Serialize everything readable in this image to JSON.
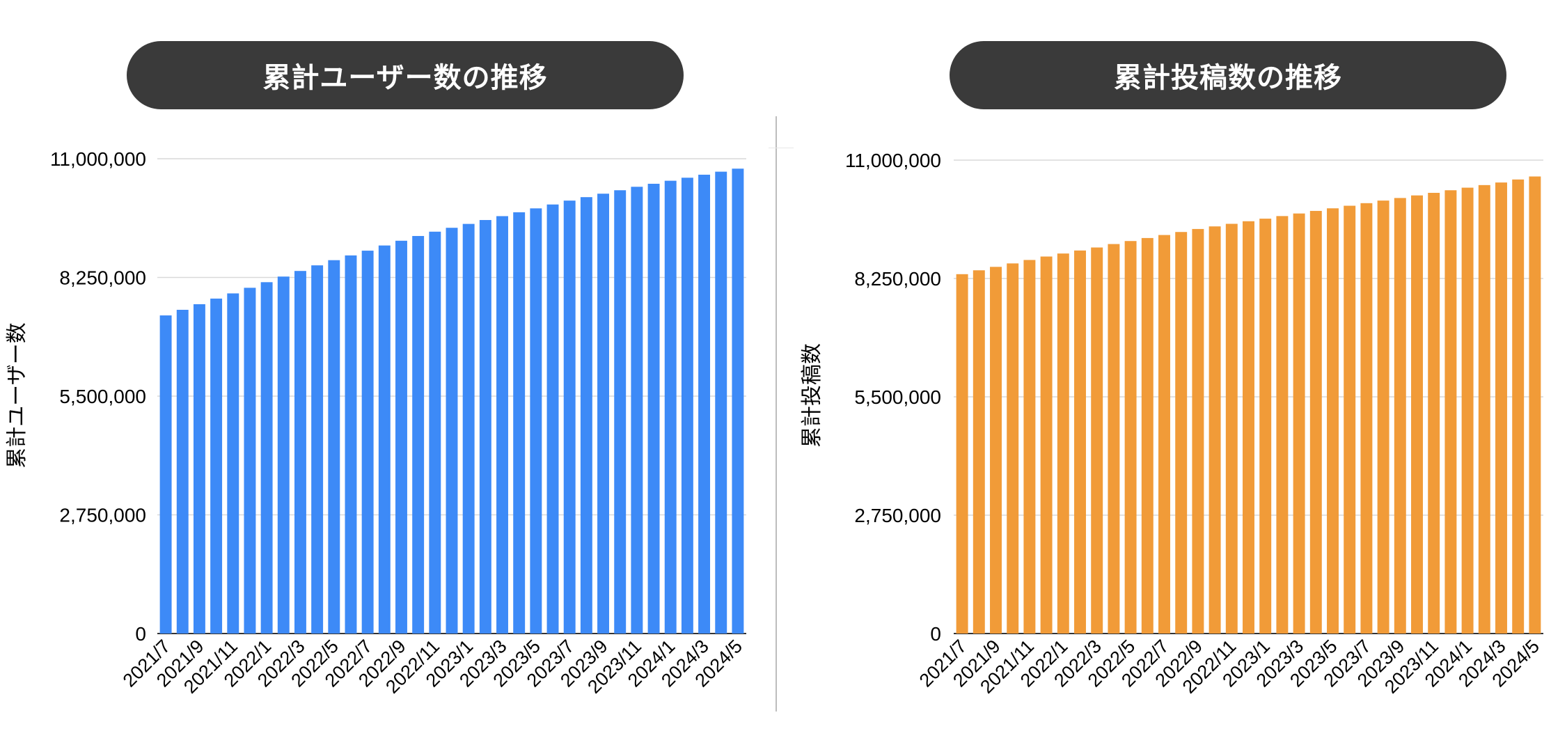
{
  "chart_data": [
    {
      "type": "bar",
      "title": "累計ユーザー数の推移",
      "xlabel": "",
      "ylabel": "累計ユーザー数",
      "ylim": [
        0,
        11000000
      ],
      "yticks": [
        0,
        2750000,
        5500000,
        8250000,
        11000000
      ],
      "ytick_labels": [
        "0",
        "2,750,000",
        "5,500,000",
        "8,250,000",
        "11,000,000"
      ],
      "grid": true,
      "color": "#3d8af7",
      "categories": [
        "2021/7",
        "2021/8",
        "2021/9",
        "2021/10",
        "2021/11",
        "2021/12",
        "2022/1",
        "2022/2",
        "2022/3",
        "2022/4",
        "2022/5",
        "2022/6",
        "2022/7",
        "2022/8",
        "2022/9",
        "2022/10",
        "2022/11",
        "2022/12",
        "2023/1",
        "2023/2",
        "2023/3",
        "2023/4",
        "2023/5",
        "2023/6",
        "2023/7",
        "2023/8",
        "2023/9",
        "2023/10",
        "2023/11",
        "2023/12",
        "2024/1",
        "2024/2",
        "2024/3",
        "2024/4",
        "2024/5"
      ],
      "xtick_labels": [
        "2021/7",
        "2021/9",
        "2021/11",
        "2022/1",
        "2022/3",
        "2022/5",
        "2022/7",
        "2022/9",
        "2022/11",
        "2023/1",
        "2023/3",
        "2023/5",
        "2023/7",
        "2023/9",
        "2023/11",
        "2024/1",
        "2024/3",
        "2024/5"
      ],
      "values": [
        7370000,
        7500000,
        7630000,
        7760000,
        7880000,
        8010000,
        8140000,
        8270000,
        8400000,
        8530000,
        8650000,
        8760000,
        8870000,
        8990000,
        9100000,
        9210000,
        9310000,
        9400000,
        9490000,
        9580000,
        9670000,
        9760000,
        9850000,
        9940000,
        10030000,
        10110000,
        10190000,
        10270000,
        10350000,
        10420000,
        10490000,
        10560000,
        10630000,
        10700000,
        10770000
      ]
    },
    {
      "type": "bar",
      "title": "累計投稿数の推移",
      "xlabel": "",
      "ylabel": "累計投稿数",
      "ylim": [
        0,
        11000000
      ],
      "yticks": [
        0,
        2750000,
        5500000,
        8250000,
        11000000
      ],
      "ytick_labels": [
        "0",
        "2,750,000",
        "5,500,000",
        "8,250,000",
        "11,000,000"
      ],
      "grid": true,
      "color": "#f19b38",
      "categories": [
        "2021/7",
        "2021/8",
        "2021/9",
        "2021/10",
        "2021/11",
        "2021/12",
        "2022/1",
        "2022/2",
        "2022/3",
        "2022/4",
        "2022/5",
        "2022/6",
        "2022/7",
        "2022/8",
        "2022/9",
        "2022/10",
        "2022/11",
        "2022/12",
        "2023/1",
        "2023/2",
        "2023/3",
        "2023/4",
        "2023/5",
        "2023/6",
        "2023/7",
        "2023/8",
        "2023/9",
        "2023/10",
        "2023/11",
        "2023/12",
        "2024/1",
        "2024/2",
        "2024/3",
        "2024/4",
        "2024/5"
      ],
      "xtick_labels": [
        "2021/7",
        "2021/9",
        "2021/11",
        "2022/1",
        "2022/3",
        "2022/5",
        "2022/7",
        "2022/9",
        "2022/11",
        "2023/1",
        "2023/3",
        "2023/5",
        "2023/7",
        "2023/9",
        "2023/11",
        "2024/1",
        "2024/3",
        "2024/5"
      ],
      "values": [
        8350000,
        8440000,
        8520000,
        8600000,
        8680000,
        8760000,
        8830000,
        8900000,
        8970000,
        9050000,
        9120000,
        9190000,
        9260000,
        9330000,
        9400000,
        9460000,
        9520000,
        9580000,
        9640000,
        9700000,
        9760000,
        9820000,
        9880000,
        9940000,
        10000000,
        10060000,
        10120000,
        10180000,
        10240000,
        10300000,
        10360000,
        10420000,
        10480000,
        10550000,
        10620000
      ]
    }
  ]
}
